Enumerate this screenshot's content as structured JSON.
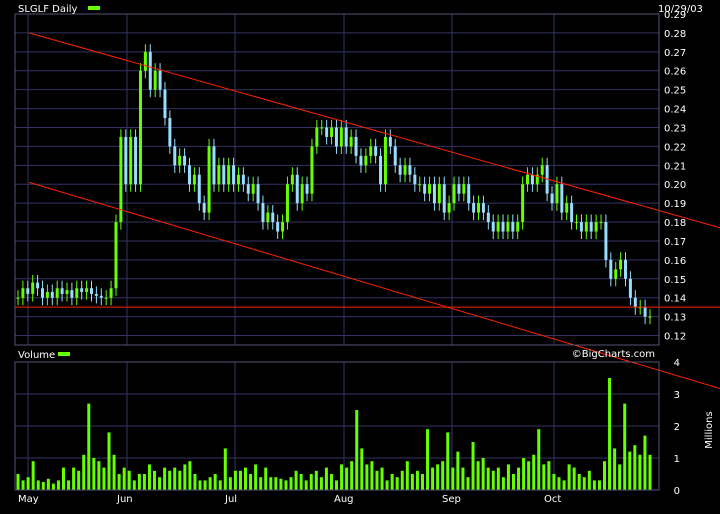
{
  "chart_data": [
    {
      "type": "candlestick",
      "title": "SLGLF Daily",
      "date": "10/29/03",
      "ylim": [
        0.115,
        0.29
      ],
      "y_ticks": [
        0.12,
        0.13,
        0.14,
        0.15,
        0.16,
        0.17,
        0.18,
        0.19,
        0.2,
        0.21,
        0.22,
        0.23,
        0.24,
        0.25,
        0.26,
        0.27,
        0.28,
        0.29
      ],
      "y_tick_labels": [
        "0.12",
        "0.13",
        "0.14",
        "0.15",
        "0.16",
        "0.17",
        "0.18",
        "0.19",
        "0.20",
        "0.21",
        "0.22",
        "0.23",
        "0.24",
        "0.25",
        "0.26",
        "0.27",
        "0.28",
        "0.29"
      ],
      "x_tick_labels": [
        "May",
        "Jun",
        "Jul",
        "Aug",
        "Sep",
        "Oct"
      ],
      "grid": true,
      "colors": {
        "up": "#66ff00",
        "down": "#99ddff",
        "trend": "#ff2200",
        "grid": "#333366",
        "frame": "#555577"
      },
      "closes": [
        0.14,
        0.145,
        0.142,
        0.148,
        0.145,
        0.14,
        0.143,
        0.14,
        0.145,
        0.142,
        0.144,
        0.14,
        0.145,
        0.143,
        0.145,
        0.142,
        0.141,
        0.14,
        0.14,
        0.145,
        0.18,
        0.225,
        0.2,
        0.225,
        0.2,
        0.26,
        0.27,
        0.25,
        0.26,
        0.25,
        0.235,
        0.22,
        0.21,
        0.215,
        0.21,
        0.2,
        0.205,
        0.19,
        0.185,
        0.22,
        0.2,
        0.21,
        0.2,
        0.21,
        0.2,
        0.205,
        0.2,
        0.195,
        0.2,
        0.19,
        0.18,
        0.185,
        0.18,
        0.175,
        0.18,
        0.2,
        0.205,
        0.19,
        0.2,
        0.195,
        0.22,
        0.23,
        0.23,
        0.225,
        0.23,
        0.22,
        0.23,
        0.22,
        0.225,
        0.215,
        0.21,
        0.215,
        0.22,
        0.215,
        0.2,
        0.225,
        0.22,
        0.21,
        0.205,
        0.21,
        0.205,
        0.2,
        0.2,
        0.195,
        0.2,
        0.19,
        0.2,
        0.185,
        0.19,
        0.2,
        0.195,
        0.2,
        0.19,
        0.185,
        0.19,
        0.185,
        0.18,
        0.175,
        0.18,
        0.175,
        0.18,
        0.175,
        0.18,
        0.2,
        0.205,
        0.2,
        0.205,
        0.21,
        0.195,
        0.19,
        0.2,
        0.185,
        0.19,
        0.18,
        0.18,
        0.175,
        0.18,
        0.175,
        0.18,
        0.18,
        0.16,
        0.15,
        0.155,
        0.16,
        0.15,
        0.14,
        0.135,
        0.135,
        0.13,
        0.13
      ],
      "trendlines": [
        {
          "from": [
            0.02,
            0.28
          ],
          "to": [
            1.0,
            0.177
          ]
        },
        {
          "from": [
            0.02,
            0.201
          ],
          "to": [
            1.0,
            0.092
          ]
        },
        {
          "from": [
            0.0,
            0.135
          ],
          "to": [
            1.0,
            0.135
          ]
        }
      ]
    },
    {
      "type": "bar",
      "title": "Volume",
      "ylabel": "Millions",
      "ylim": [
        0,
        4
      ],
      "y_ticks": [
        0,
        1,
        2,
        3,
        4
      ],
      "y_tick_labels": [
        "0",
        "1",
        "2",
        "3",
        "4"
      ],
      "watermark": "©BigCharts.com",
      "values": [
        0.5,
        0.3,
        0.4,
        0.9,
        0.3,
        0.25,
        0.35,
        0.2,
        0.3,
        0.7,
        0.3,
        0.7,
        0.6,
        1.1,
        2.7,
        1.0,
        0.9,
        0.7,
        1.8,
        1.1,
        0.5,
        0.7,
        0.6,
        0.3,
        0.5,
        0.5,
        0.8,
        0.6,
        0.4,
        0.7,
        0.6,
        0.7,
        0.6,
        0.8,
        0.9,
        0.5,
        0.3,
        0.3,
        0.4,
        0.5,
        0.3,
        1.3,
        0.4,
        0.6,
        0.6,
        0.7,
        0.5,
        0.8,
        0.4,
        0.7,
        0.4,
        0.4,
        0.35,
        0.3,
        0.4,
        0.6,
        0.5,
        0.3,
        0.5,
        0.6,
        0.4,
        0.7,
        0.5,
        0.3,
        0.8,
        0.7,
        0.9,
        2.5,
        1.3,
        0.8,
        0.9,
        0.6,
        0.7,
        0.3,
        0.5,
        0.4,
        0.6,
        0.9,
        0.5,
        0.6,
        0.5,
        1.9,
        0.7,
        0.8,
        0.9,
        1.8,
        0.7,
        1.2,
        0.7,
        0.4,
        1.5,
        0.9,
        1.0,
        0.7,
        0.6,
        0.7,
        0.4,
        0.8,
        0.5,
        0.7,
        1.0,
        0.9,
        1.1,
        1.9,
        0.8,
        0.9,
        0.5,
        0.4,
        0.3,
        0.8,
        0.7,
        0.5,
        0.4,
        0.6,
        0.3,
        0.3,
        0.9,
        3.5,
        1.3,
        0.8,
        2.7,
        1.2,
        1.4,
        1.1,
        1.7,
        1.1
      ]
    }
  ]
}
